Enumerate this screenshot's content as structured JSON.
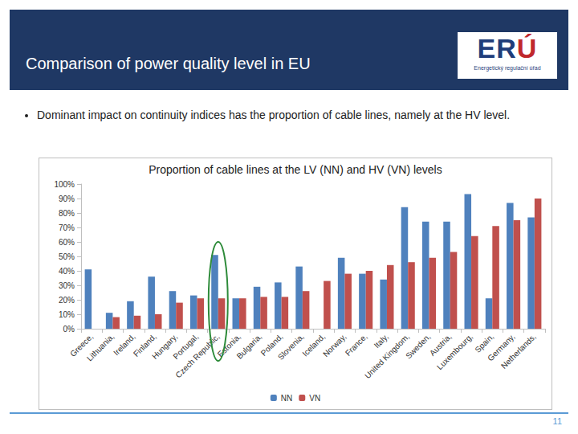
{
  "slide": {
    "title": "Comparison of power quality level in EU",
    "bullet": "Dominant impact on continuity indices has the proportion of cable lines, namely at the HV level.",
    "logo_text": "ERÚ",
    "logo_subtext": "Energetický regulační úřad",
    "page_number": "11"
  },
  "chart_data": {
    "type": "bar",
    "title": "Proportion of cable lines at the LV (NN) and HV (VN) levels",
    "categories": [
      "Greece,",
      "Lithuania,",
      "Ireland,",
      "Finland,",
      "Hungary,",
      "Portugal,",
      "Czech Republic,",
      "Estonia,",
      "Bulgaria,",
      "Poland,",
      "Slovenia,",
      "Iceland,",
      "Norway,",
      "France,",
      "Italy,",
      "United Kingdom,",
      "Sweden,",
      "Austria,",
      "Luxembourg,",
      "Spain,",
      "Germany,",
      "Netherlands,"
    ],
    "series": [
      {
        "name": "NN",
        "color": "#4f81bd",
        "values": [
          41,
          11,
          19,
          36,
          26,
          23,
          51,
          21,
          29,
          32,
          43,
          null,
          49,
          38,
          34,
          84,
          74,
          74,
          93,
          21,
          87,
          77
        ]
      },
      {
        "name": "VN",
        "color": "#c0504d",
        "values": [
          null,
          8,
          9,
          10,
          18,
          21,
          21,
          21,
          22,
          22,
          26,
          33,
          38,
          40,
          44,
          46,
          49,
          53,
          64,
          71,
          75,
          90
        ]
      }
    ],
    "ylim": [
      0,
      100
    ],
    "yticks": [
      {
        "value": 0,
        "label": "0%"
      },
      {
        "value": 10,
        "label": "10%"
      },
      {
        "value": 20,
        "label": "20%"
      },
      {
        "value": 30,
        "label": "30%"
      },
      {
        "value": 40,
        "label": "40%"
      },
      {
        "value": 50,
        "label": "50%"
      },
      {
        "value": 60,
        "label": "60%"
      },
      {
        "value": 70,
        "label": "70%"
      },
      {
        "value": 80,
        "label": "80%"
      },
      {
        "value": 90,
        "label": "90%"
      },
      {
        "value": 100,
        "label": "100%"
      }
    ],
    "grid": false,
    "legend": "bottom",
    "data_labels": false
  }
}
